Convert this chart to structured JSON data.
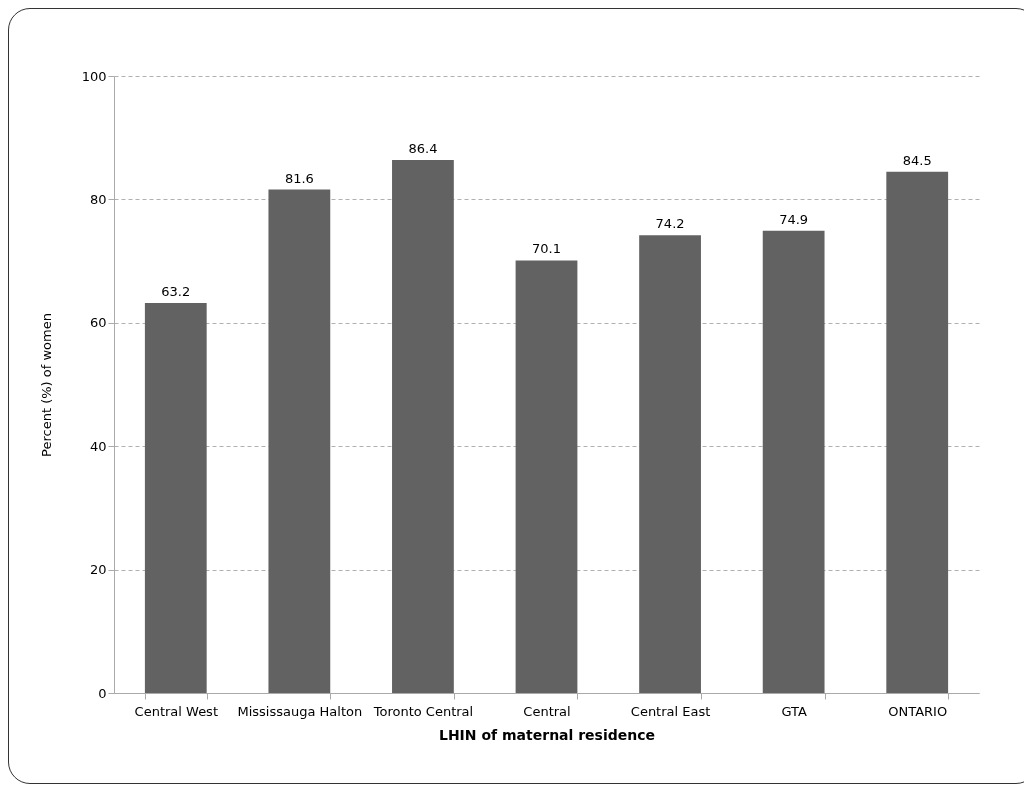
{
  "chart_data": {
    "type": "bar",
    "xlabel": "LHIN of maternal residence",
    "ylabel": "Percent (%) of women",
    "categories": [
      "Central West",
      "Mississauga Halton",
      "Toronto Central",
      "Central",
      "Central East",
      "GTA",
      "ONTARIO"
    ],
    "values": [
      63.2,
      81.6,
      86.4,
      70.1,
      74.2,
      74.9,
      84.5
    ],
    "color": "#626262",
    "ylim": [
      0,
      100
    ],
    "yticks": [
      0,
      20,
      40,
      60,
      80,
      100
    ],
    "grid": "y",
    "data_labels": true
  }
}
